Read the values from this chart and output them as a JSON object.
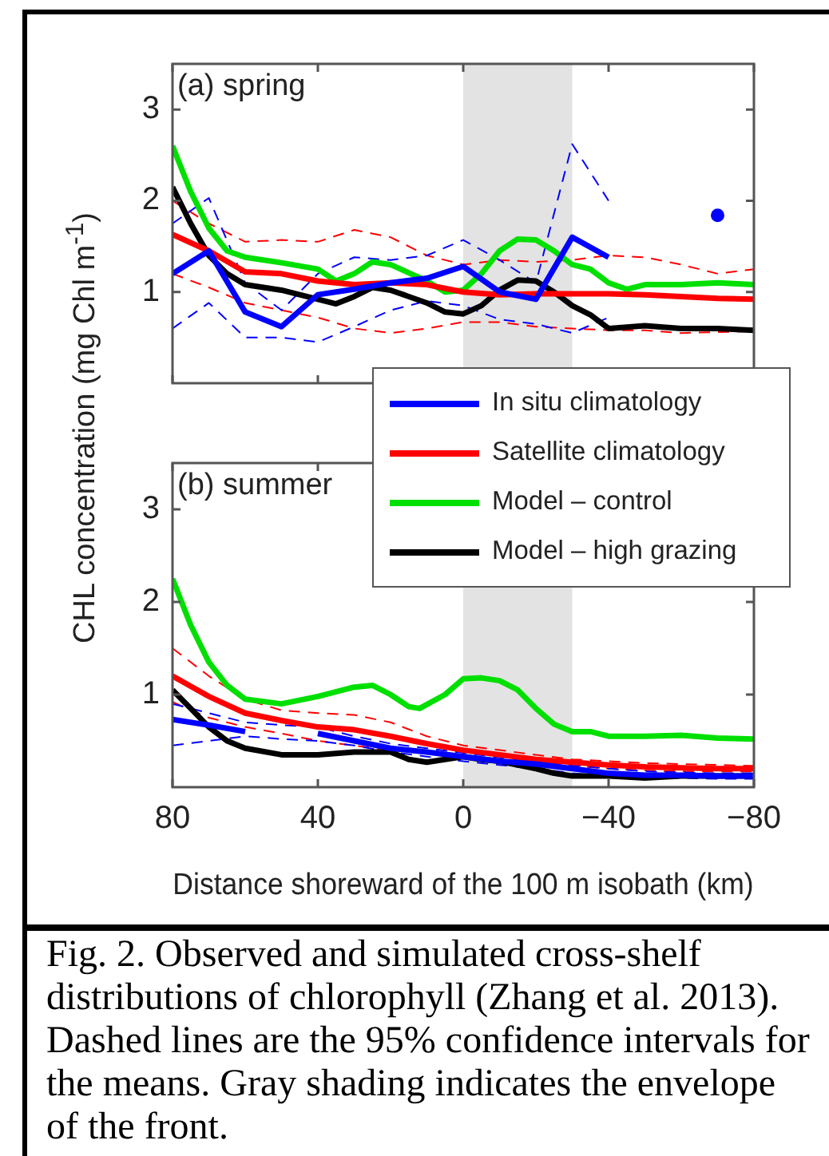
{
  "chart_data": [
    {
      "type": "line",
      "title": "(a) spring",
      "ylabel": "CHL concentration (mg Chl m$^{-1}$)",
      "legend": "bottom right",
      "tick_labels": "y",
      "xlim": [
        80,
        -80
      ],
      "xticks": [
        80,
        40,
        0,
        -40,
        -80
      ],
      "ylim": [
        0,
        3.5
      ],
      "yticks": [
        1,
        2,
        3
      ],
      "bands": [
        {
          "axis": "x",
          "from": 0,
          "to": -30,
          "color": "#e3e3e3"
        }
      ],
      "series": [
        {
          "color": "#0000ff",
          "line_style": "dashed",
          "x": [
            80,
            70,
            60,
            50,
            40,
            30,
            20,
            10,
            0,
            -10,
            -20,
            -30,
            -40
          ],
          "values": [
            1.75,
            2.03,
            1.1,
            0.8,
            1.2,
            1.38,
            1.35,
            1.4,
            1.57,
            1.35,
            1.1,
            2.62,
            2.0
          ]
        },
        {
          "color": "#0000ff",
          "line_style": "dashed",
          "x": [
            80,
            70,
            60,
            50,
            40,
            30,
            20,
            10,
            0,
            -10,
            -20,
            -30,
            -40
          ],
          "values": [
            0.6,
            0.88,
            0.5,
            0.5,
            0.45,
            0.62,
            0.8,
            0.9,
            0.85,
            0.7,
            0.65,
            0.55,
            0.72
          ]
        },
        {
          "color": "#ff0000",
          "line_style": "dashed",
          "x": [
            80,
            70,
            60,
            50,
            40,
            30,
            20,
            10,
            0,
            -10,
            -20,
            -30,
            -40,
            -50,
            -60,
            -70,
            -80
          ],
          "values": [
            2.0,
            1.75,
            1.55,
            1.57,
            1.55,
            1.68,
            1.6,
            1.4,
            1.3,
            1.35,
            1.33,
            1.35,
            1.4,
            1.38,
            1.3,
            1.2,
            1.25
          ]
        },
        {
          "color": "#ff0000",
          "line_style": "dashed",
          "x": [
            80,
            70,
            60,
            50,
            40,
            30,
            20,
            10,
            0,
            -10,
            -20,
            -30,
            -40,
            -50,
            -60,
            -70,
            -80
          ],
          "values": [
            1.2,
            1.05,
            0.88,
            0.8,
            0.72,
            0.6,
            0.55,
            0.6,
            0.67,
            0.67,
            0.62,
            0.6,
            0.58,
            0.58,
            0.55,
            0.56,
            0.57
          ]
        },
        {
          "name": "In situ climatology",
          "color": "#0000ff",
          "x": [
            80,
            70,
            60,
            50,
            40,
            30,
            20,
            10,
            0,
            -10,
            -20,
            -30,
            -40,
            -50,
            -60,
            -70
          ],
          "values": [
            1.2,
            1.45,
            0.78,
            0.62,
            0.97,
            1.03,
            1.1,
            1.15,
            1.28,
            1.0,
            0.92,
            1.6,
            1.38,
            null,
            null,
            1.84
          ]
        },
        {
          "name": "Satellite climatology",
          "color": "#ff0000",
          "x": [
            80,
            70,
            60,
            50,
            40,
            30,
            20,
            10,
            0,
            -10,
            -20,
            -30,
            -40,
            -50,
            -60,
            -70,
            -80
          ],
          "values": [
            1.63,
            1.45,
            1.22,
            1.2,
            1.12,
            1.08,
            1.1,
            1.08,
            1.0,
            0.97,
            0.98,
            0.98,
            0.98,
            0.97,
            0.95,
            0.93,
            0.92
          ]
        },
        {
          "name": "Model – control",
          "color": "#00e000",
          "x": [
            80,
            75,
            70,
            65,
            60,
            50,
            40,
            35,
            30,
            25,
            20,
            10,
            5,
            0,
            -5,
            -10,
            -15,
            -20,
            -25,
            -30,
            -35,
            -40,
            -45,
            -50,
            -60,
            -70,
            -80
          ],
          "values": [
            2.6,
            2.1,
            1.7,
            1.45,
            1.38,
            1.32,
            1.25,
            1.12,
            1.2,
            1.33,
            1.3,
            1.12,
            1.0,
            1.02,
            1.2,
            1.45,
            1.58,
            1.57,
            1.45,
            1.3,
            1.25,
            1.1,
            1.03,
            1.08,
            1.08,
            1.1,
            1.08
          ]
        },
        {
          "name": "Model – high grazing",
          "color": "#000000",
          "x": [
            80,
            75,
            70,
            65,
            60,
            50,
            40,
            35,
            30,
            25,
            20,
            10,
            5,
            0,
            -5,
            -10,
            -15,
            -20,
            -25,
            -30,
            -35,
            -40,
            -50,
            -60,
            -70,
            -80
          ],
          "values": [
            2.15,
            1.75,
            1.4,
            1.2,
            1.08,
            1.02,
            0.92,
            0.87,
            0.95,
            1.05,
            1.02,
            0.88,
            0.78,
            0.76,
            0.85,
            1.02,
            1.13,
            1.12,
            1.0,
            0.85,
            0.75,
            0.6,
            0.63,
            0.6,
            0.6,
            0.58
          ]
        }
      ]
    },
    {
      "type": "line",
      "title": "(b) summer",
      "xlabel": "Distance shoreward of the 100 m isobath (km)",
      "xlim": [
        80,
        -80
      ],
      "xticks": [
        80,
        40,
        0,
        -40,
        -80
      ],
      "ylim": [
        0,
        3.5
      ],
      "yticks": [
        1,
        2,
        3
      ],
      "bands": [
        {
          "axis": "x",
          "from": 0,
          "to": -30,
          "color": "#e3e3e3"
        }
      ],
      "annotations": [
        "Fig. 2. Observed and simulated cross-shelf distributions of chlorophyll (Zhang et al. 2013). Dashed lines are the 95% confidence intervals for the means. Gray shading indicates the envelope of the front."
      ],
      "series": [
        {
          "color": "#0000ff",
          "x": [
            80,
            70,
            60,
            50,
            40,
            30,
            20,
            10,
            0,
            -10,
            -20,
            -30,
            -40,
            -50,
            -60,
            -70,
            -80
          ],
          "values": [
            0.73,
            0.67,
            0.6,
            null,
            0.58,
            0.5,
            0.42,
            0.38,
            0.33,
            0.28,
            0.25,
            0.2,
            0.15,
            0.13,
            0.13,
            0.12,
            0.12
          ]
        },
        {
          "color": "#0000ff",
          "line_style": "dashed",
          "x": [
            80,
            70,
            60,
            50,
            40,
            30,
            20,
            10,
            0,
            -10,
            -20,
            -30,
            -40,
            -50,
            -60,
            -70,
            -80
          ],
          "values": [
            0.9,
            0.8,
            0.7,
            0.67,
            0.65,
            0.55,
            0.47,
            0.42,
            0.37,
            0.32,
            0.28,
            0.24,
            0.2,
            0.17,
            0.16,
            0.15,
            0.15
          ]
        },
        {
          "color": "#0000ff",
          "line_style": "dashed",
          "x": [
            80,
            70,
            60,
            50,
            40,
            30,
            20,
            10,
            0,
            -10,
            -20,
            -30,
            -40,
            -50,
            -60,
            -70,
            -80
          ],
          "values": [
            0.45,
            0.5,
            0.55,
            0.52,
            0.5,
            0.45,
            0.38,
            0.33,
            0.28,
            0.24,
            0.2,
            0.15,
            0.12,
            0.1,
            0.1,
            0.09,
            0.09
          ]
        },
        {
          "color": "#ff0000",
          "line_style": "dashed",
          "x": [
            80,
            70,
            60,
            50,
            40,
            30,
            20,
            10,
            0,
            -10,
            -20,
            -30,
            -40,
            -50,
            -60,
            -70,
            -80
          ],
          "values": [
            1.5,
            1.2,
            0.95,
            0.83,
            0.8,
            0.78,
            0.7,
            0.55,
            0.45,
            0.4,
            0.35,
            0.3,
            0.28,
            0.26,
            0.25,
            0.24,
            0.23
          ]
        },
        {
          "color": "#ff0000",
          "line_style": "dashed",
          "x": [
            80,
            70,
            60,
            50,
            40,
            30,
            20,
            10,
            0,
            -10,
            -20,
            -30,
            -40,
            -50,
            -60,
            -70,
            -80
          ],
          "values": [
            0.92,
            0.75,
            0.65,
            0.58,
            0.5,
            0.45,
            0.4,
            0.37,
            0.33,
            0.3,
            0.26,
            0.23,
            0.2,
            0.18,
            0.17,
            0.17,
            0.17
          ]
        },
        {
          "color": "#ff0000",
          "x": [
            80,
            70,
            60,
            50,
            40,
            30,
            20,
            10,
            0,
            -10,
            -20,
            -30,
            -40,
            -50,
            -60,
            -70,
            -80
          ],
          "values": [
            1.2,
            0.98,
            0.8,
            0.72,
            0.65,
            0.62,
            0.55,
            0.47,
            0.4,
            0.35,
            0.3,
            0.27,
            0.24,
            0.22,
            0.21,
            0.2,
            0.2
          ]
        },
        {
          "color": "#00e000",
          "x": [
            80,
            75,
            70,
            65,
            60,
            50,
            40,
            30,
            25,
            20,
            15,
            12,
            5,
            0,
            -5,
            -10,
            -15,
            -20,
            -25,
            -30,
            -35,
            -40,
            -50,
            -60,
            -70,
            -80
          ],
          "values": [
            2.25,
            1.75,
            1.35,
            1.1,
            0.95,
            0.9,
            0.98,
            1.08,
            1.1,
            1.0,
            0.87,
            0.85,
            1.0,
            1.17,
            1.18,
            1.15,
            1.05,
            0.85,
            0.68,
            0.6,
            0.6,
            0.55,
            0.55,
            0.56,
            0.53,
            0.52
          ]
        },
        {
          "color": "#000000",
          "x": [
            80,
            75,
            70,
            65,
            60,
            50,
            40,
            30,
            20,
            15,
            10,
            5,
            0,
            -5,
            -10,
            -20,
            -25,
            -30,
            -40,
            -50,
            -60,
            -70,
            -80
          ],
          "values": [
            1.05,
            0.85,
            0.65,
            0.5,
            0.42,
            0.35,
            0.35,
            0.38,
            0.38,
            0.3,
            0.27,
            0.3,
            0.33,
            0.3,
            0.28,
            0.2,
            0.15,
            0.12,
            0.12,
            0.1,
            0.12,
            0.12,
            0.12
          ]
        }
      ]
    }
  ]
}
